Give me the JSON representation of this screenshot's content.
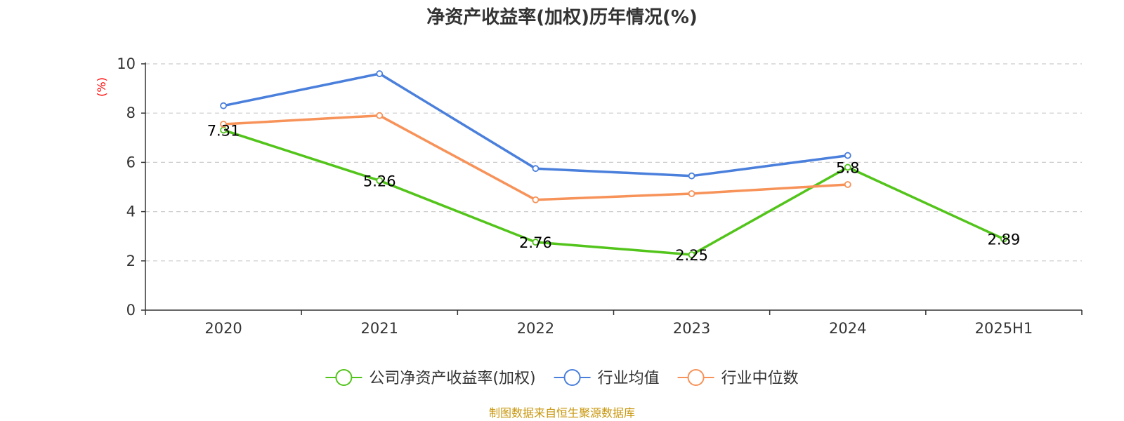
{
  "source_note": "制图数据来自恒生聚源数据库",
  "colors": {
    "company": "#52c41a",
    "industry_avg": "#4a7fdc",
    "industry_median": "#f79259",
    "grid": "#cccccc",
    "axis": "#333333",
    "ylabel": "#ff0000",
    "source": "#c8960c"
  },
  "chart_data": {
    "type": "line",
    "title": "净资产收益率(加权)历年情况(%)",
    "xlabel": "",
    "ylabel": "(%)",
    "ylim": [
      0,
      10
    ],
    "yticks": [
      0,
      2,
      4,
      6,
      8,
      10
    ],
    "grid": true,
    "legend_position": "bottom-center",
    "categories": [
      "2020",
      "2021",
      "2022",
      "2023",
      "2024",
      "2025H1"
    ],
    "series": [
      {
        "name": "公司净资产收益率(加权)",
        "color": "#52c41a",
        "values": [
          7.31,
          5.26,
          2.76,
          2.25,
          5.8,
          2.89
        ],
        "labels": [
          "7.31",
          "5.26",
          "2.76",
          "2.25",
          "5.8",
          "2.89"
        ]
      },
      {
        "name": "行业均值",
        "color": "#4a7fdc",
        "values": [
          8.3,
          9.6,
          5.75,
          5.45,
          6.28,
          null
        ]
      },
      {
        "name": "行业中位数",
        "color": "#f79259",
        "values": [
          7.55,
          7.9,
          4.48,
          4.73,
          5.1,
          null
        ]
      }
    ]
  }
}
